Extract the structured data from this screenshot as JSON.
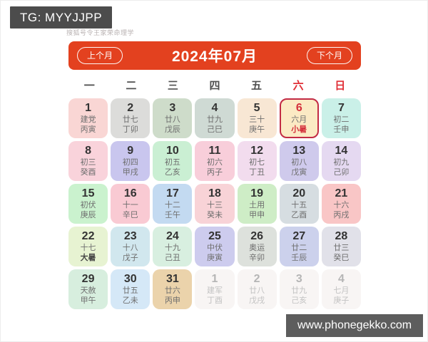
{
  "page": {
    "tg_badge": "TG: MYYJJPP",
    "watermark": "搜狐号令王家荣命理学",
    "website_badge": "www.phonegekko.com"
  },
  "colors": {
    "header_bg": "#e3411f",
    "highlight_border": "#c22b45",
    "weekday_red": "#e02e36",
    "tg_badge_bg": "#4c4c4c",
    "website_badge_bg": "#5d5d5d"
  },
  "calendar": {
    "prev_button": "上个月",
    "title": "2024年07月",
    "next_button": "下个月",
    "weekdays": [
      {
        "label": "一",
        "red": false
      },
      {
        "label": "二",
        "red": false
      },
      {
        "label": "三",
        "red": false
      },
      {
        "label": "四",
        "red": false
      },
      {
        "label": "五",
        "red": false
      },
      {
        "label": "六",
        "red": true
      },
      {
        "label": "日",
        "red": true
      }
    ],
    "days": [
      {
        "num": "1",
        "line1": "建党",
        "line2": "丙寅",
        "bg": "#f9d6d4"
      },
      {
        "num": "2",
        "line1": "廿七",
        "line2": "丁卯",
        "bg": "#dcdcda"
      },
      {
        "num": "3",
        "line1": "廿八",
        "line2": "戊辰",
        "bg": "#cedcca"
      },
      {
        "num": "4",
        "line1": "廿九",
        "line2": "己巳",
        "bg": "#cfdad4"
      },
      {
        "num": "5",
        "line1": "三十",
        "line2": "庚午",
        "bg": "#f8e7d4"
      },
      {
        "num": "6",
        "line1": "六月",
        "line2": "小暑",
        "bg": "#fbeac4",
        "highlight": true,
        "line2_red": true
      },
      {
        "num": "7",
        "line1": "初二",
        "line2": "壬申",
        "bg": "#caf0e8"
      },
      {
        "num": "8",
        "line1": "初三",
        "line2": "癸酉",
        "bg": "#f9d3db"
      },
      {
        "num": "9",
        "line1": "初四",
        "line2": "甲戌",
        "bg": "#c9c6ee"
      },
      {
        "num": "10",
        "line1": "初五",
        "line2": "乙亥",
        "bg": "#caefd3"
      },
      {
        "num": "11",
        "line1": "初六",
        "line2": "丙子",
        "bg": "#f8ceda"
      },
      {
        "num": "12",
        "line1": "初七",
        "line2": "丁丑",
        "bg": "#f2dcee"
      },
      {
        "num": "13",
        "line1": "初八",
        "line2": "戊寅",
        "bg": "#cfcaec"
      },
      {
        "num": "14",
        "line1": "初九",
        "line2": "己卯",
        "bg": "#e5d9f1"
      },
      {
        "num": "15",
        "line1": "初伏",
        "line2": "庚辰",
        "bg": "#caf2ce"
      },
      {
        "num": "16",
        "line1": "十一",
        "line2": "辛巳",
        "bg": "#f9cad3"
      },
      {
        "num": "17",
        "line1": "十二",
        "line2": "壬午",
        "bg": "#c3daf1"
      },
      {
        "num": "18",
        "line1": "十三",
        "line2": "癸未",
        "bg": "#f8d3d7"
      },
      {
        "num": "19",
        "line1": "土用",
        "line2": "甲申",
        "bg": "#ceedc6"
      },
      {
        "num": "20",
        "line1": "十五",
        "line2": "乙酉",
        "bg": "#d6dde1"
      },
      {
        "num": "21",
        "line1": "十六",
        "line2": "丙戌",
        "bg": "#f9c6c6"
      },
      {
        "num": "22",
        "line1": "十七",
        "line2": "大暑",
        "bg": "#e7f3d2",
        "line2_bold": true
      },
      {
        "num": "23",
        "line1": "十八",
        "line2": "戊子",
        "bg": "#d1e7ee"
      },
      {
        "num": "24",
        "line1": "十九",
        "line2": "己丑",
        "bg": "#d8efe0"
      },
      {
        "num": "25",
        "line1": "中伏",
        "line2": "庚寅",
        "bg": "#cdccee"
      },
      {
        "num": "26",
        "line1": "奥运",
        "line2": "辛卯",
        "bg": "#dde1dc"
      },
      {
        "num": "27",
        "line1": "廿二",
        "line2": "壬辰",
        "bg": "#ccd1ec"
      },
      {
        "num": "28",
        "line1": "廿三",
        "line2": "癸巳",
        "bg": "#e1e1e9"
      },
      {
        "num": "29",
        "line1": "天赦",
        "line2": "甲午",
        "bg": "#d7eede"
      },
      {
        "num": "30",
        "line1": "廿五",
        "line2": "乙未",
        "bg": "#d5e8f7"
      },
      {
        "num": "31",
        "line1": "廿六",
        "line2": "丙申",
        "bg": "#ebd3ab"
      },
      {
        "num": "1",
        "line1": "建军",
        "line2": "丁酉",
        "bg": "#f8f5f4",
        "muted": true
      },
      {
        "num": "2",
        "line1": "廿八",
        "line2": "戊戌",
        "bg": "#f8f5f4",
        "muted": true
      },
      {
        "num": "3",
        "line1": "廿九",
        "line2": "己亥",
        "bg": "#f8f5f4",
        "muted": true
      },
      {
        "num": "4",
        "line1": "七月",
        "line2": "庚子",
        "bg": "#f8f5f4",
        "muted": true
      }
    ]
  }
}
